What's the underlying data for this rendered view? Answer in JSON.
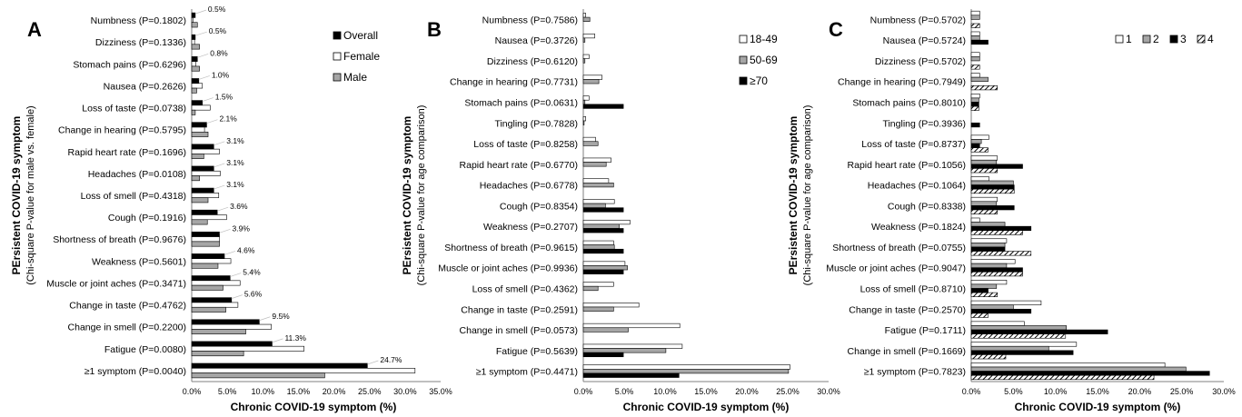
{
  "chart_data": [
    {
      "panel_label": "A",
      "type": "bar",
      "orientation": "horizontal",
      "ylabel": "PErsistent COVID-19 symptom",
      "ylabel_sub": "(Chi-square P-value for male vs. female)",
      "xlabel": "Chronic COVID-19 symptom (%)",
      "xlim": [
        0,
        35
      ],
      "xticks": [
        "0.0%",
        "5.0%",
        "10.0%",
        "15.0%",
        "20.0%",
        "25.0%",
        "30.0%",
        "35.0%"
      ],
      "legend_placement": "top-right",
      "categories": [
        "Numbness (P=0.1802)",
        "Dizziness (P=0.1336)",
        "Stomach pains (P=0.6296)",
        "Nausea (P=0.2626)",
        "Loss of taste (P=0.0738)",
        "Change in hearing (P=0.5795)",
        "Rapid heart rate (P=0.1696)",
        "Headaches (P=0.0108)",
        "Loss of smell (P=0.4318)",
        "Cough (P=0.1916)",
        "Shortness of breath (P=0.9676)",
        "Weakness (P=0.5601)",
        "Muscle or joint aches (P=0.3471)",
        "Change in taste (P=0.4762)",
        "Change in smell (P=0.2200)",
        "Fatigue (P=0.0080)",
        "≥1 symptom (P=0.0040)"
      ],
      "data_labels": [
        "0.5%",
        "0.5%",
        "0.8%",
        "1.0%",
        "1.5%",
        "2.1%",
        "3.1%",
        "3.1%",
        "3.1%",
        "3.6%",
        "3.9%",
        "4.6%",
        "5.4%",
        "5.6%",
        "9.5%",
        "11.3%",
        "24.7%"
      ],
      "series": [
        {
          "name": "Overall",
          "fill": "#000000",
          "values": [
            0.5,
            0.5,
            0.8,
            1.0,
            1.5,
            2.1,
            3.1,
            3.1,
            3.1,
            3.6,
            3.9,
            4.6,
            5.4,
            5.6,
            9.5,
            11.3,
            24.7
          ]
        },
        {
          "name": "Female",
          "fill": "#ffffff",
          "values": [
            0.2,
            0.4,
            0.6,
            1.5,
            2.6,
            1.8,
            3.9,
            4.0,
            3.8,
            4.9,
            3.9,
            5.5,
            6.8,
            6.5,
            11.2,
            15.8,
            31.4
          ]
        },
        {
          "name": "Male",
          "fill": "#a6a6a6",
          "values": [
            0.8,
            1.1,
            1.1,
            0.7,
            0.5,
            2.3,
            1.7,
            1.1,
            2.3,
            2.2,
            3.9,
            3.7,
            4.4,
            4.8,
            7.6,
            7.3,
            18.7
          ]
        }
      ]
    },
    {
      "panel_label": "B",
      "type": "bar",
      "orientation": "horizontal",
      "ylabel": "PErsistent COVID-19 symptom",
      "ylabel_sub": "(Chi-square P-value for age comparison)",
      "xlabel": "Chronic COVID-19 symptom (%)",
      "xlim": [
        0,
        30
      ],
      "xticks": [
        "0.0%",
        "5.0%",
        "10.0%",
        "15.0%",
        "20.0%",
        "25.0%",
        "30.0%"
      ],
      "legend_placement": "top-right",
      "categories": [
        "Numbness (P=0.7586)",
        "Nausea (P=0.3726)",
        "Dizziness (P=0.6120)",
        "Change in hearing (P=0.7731)",
        "Stomach pains (P=0.0631)",
        "Tingling  (P=0.7828)",
        "Loss of taste (P=0.8258)",
        "Rapid heart rate (P=0.6770)",
        "Headaches (P=0.6778)",
        "Cough (P=0.8354)",
        "Weakness (P=0.2707)",
        "Shortness of breath (P=0.9615)",
        "Muscle or joint aches (P=0.9936)",
        "Loss of smell (P=0.4362)",
        "Change in taste (P=0.2591)",
        "Change in smell (P=0.0573)",
        "Fatigue (P=0.5639)",
        "≥1 symptom (P=0.4471)"
      ],
      "series": [
        {
          "name": "18-49",
          "fill": "#ffffff",
          "values": [
            0.3,
            1.4,
            0.7,
            2.3,
            0.7,
            0.3,
            1.5,
            3.4,
            3.1,
            3.8,
            5.7,
            3.7,
            5.1,
            3.7,
            6.8,
            11.8,
            12.1,
            25.3
          ]
        },
        {
          "name": "50-69",
          "fill": "#a6a6a6",
          "values": [
            0.8,
            0.2,
            0.2,
            1.9,
            0.2,
            0.1,
            1.8,
            2.8,
            3.7,
            2.7,
            4.4,
            3.8,
            5.4,
            1.8,
            3.7,
            5.5,
            10.1,
            25.1
          ]
        },
        {
          "name": "≥70",
          "fill": "#000000",
          "values": [
            0,
            0,
            0,
            0,
            4.9,
            0,
            0,
            0,
            0,
            4.9,
            4.9,
            4.9,
            4.9,
            0,
            0,
            0,
            4.9,
            11.7
          ]
        }
      ]
    },
    {
      "panel_label": "C",
      "type": "bar",
      "orientation": "horizontal",
      "ylabel": "PErsistent COVID-19 symptom",
      "ylabel_sub": "(Chi-square P-value for age comparison)",
      "xlabel": "Chronic COVID-19 symptom (%)",
      "xlim": [
        0,
        30
      ],
      "xticks": [
        "0.0%",
        "5.0%",
        "10.0%",
        "15.0%",
        "20.0%",
        "25.0%",
        "30.0%"
      ],
      "legend_placement": "top-right",
      "categories": [
        "Numbness (P=0.5702)",
        "Nausea (P=0.5724)",
        "Dizziness (P=0.5702)",
        "Change in hearing (P=0.7949)",
        "Stomach pains (P=0.8010)",
        "Tingling (P=0.3936)",
        "Loss of taste (P=0.8737)",
        "Rapid heart rate (P=0.1056)",
        "Headaches (P=0.1064)",
        "Cough (P=0.8338)",
        "Weakness (P=0.1824)",
        "Shortness of breath (P=0.0755)",
        "Muscle or joint aches (P=0.9047)",
        "Loss of smell (P=0.8710)",
        "Change in taste (P=0.2570)",
        "Fatigue (P=0.1711)",
        "Change in smell (P=0.1669)",
        "≥1 symptom (P=0.7823)"
      ],
      "series": [
        {
          "name": "1",
          "fill": "#ffffff",
          "values": [
            1.0,
            1.0,
            1.0,
            1.0,
            1.0,
            0,
            2.1,
            3.1,
            2.1,
            3.1,
            1.0,
            4.2,
            5.2,
            4.2,
            8.3,
            6.3,
            12.5,
            23.0
          ]
        },
        {
          "name": "2",
          "fill": "#a6a6a6",
          "values": [
            1.0,
            1.0,
            1.0,
            2.0,
            0.9,
            0,
            1.2,
            3.0,
            5.0,
            3.0,
            4.0,
            4.0,
            4.2,
            3.0,
            5.0,
            11.3,
            9.2,
            25.5
          ]
        },
        {
          "name": "3",
          "fill": "#000000",
          "values": [
            0,
            2.0,
            0,
            0,
            0.9,
            1.0,
            1.0,
            6.1,
            5.1,
            5.1,
            7.1,
            4.0,
            6.1,
            2.0,
            7.1,
            16.2,
            12.1,
            28.3
          ]
        },
        {
          "name": "4",
          "fill": "hatch",
          "values": [
            1.0,
            0,
            1.0,
            3.1,
            0.9,
            0,
            2.0,
            3.1,
            5.1,
            3.1,
            6.1,
            7.1,
            6.1,
            3.1,
            2.0,
            11.2,
            4.1,
            21.7
          ]
        }
      ]
    }
  ]
}
